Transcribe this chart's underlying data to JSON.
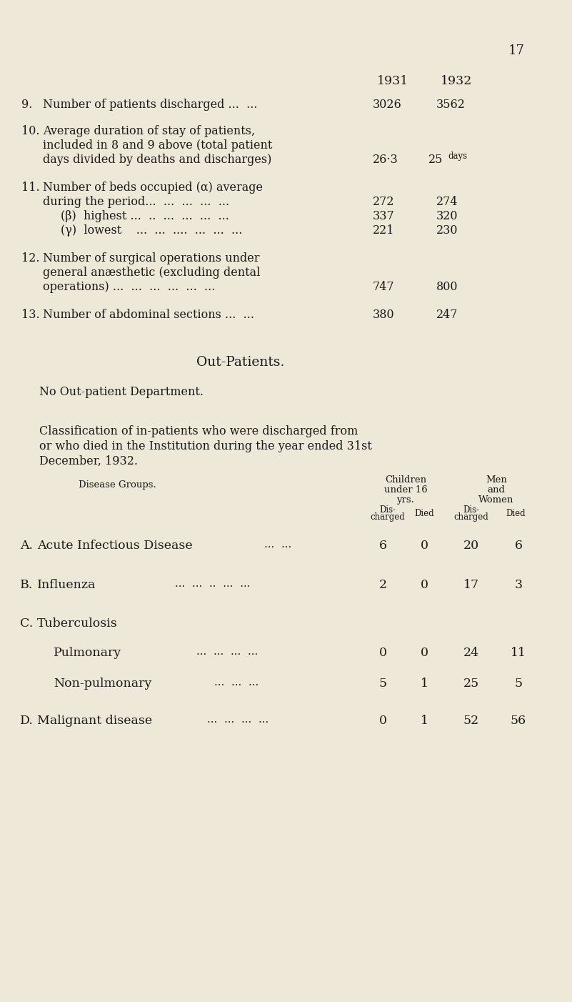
{
  "bg_color": "#ede8d8",
  "text_color": "#1a1a1a",
  "page_number": "17",
  "year_header_1931": "1931",
  "year_header_1932": "1932"
}
